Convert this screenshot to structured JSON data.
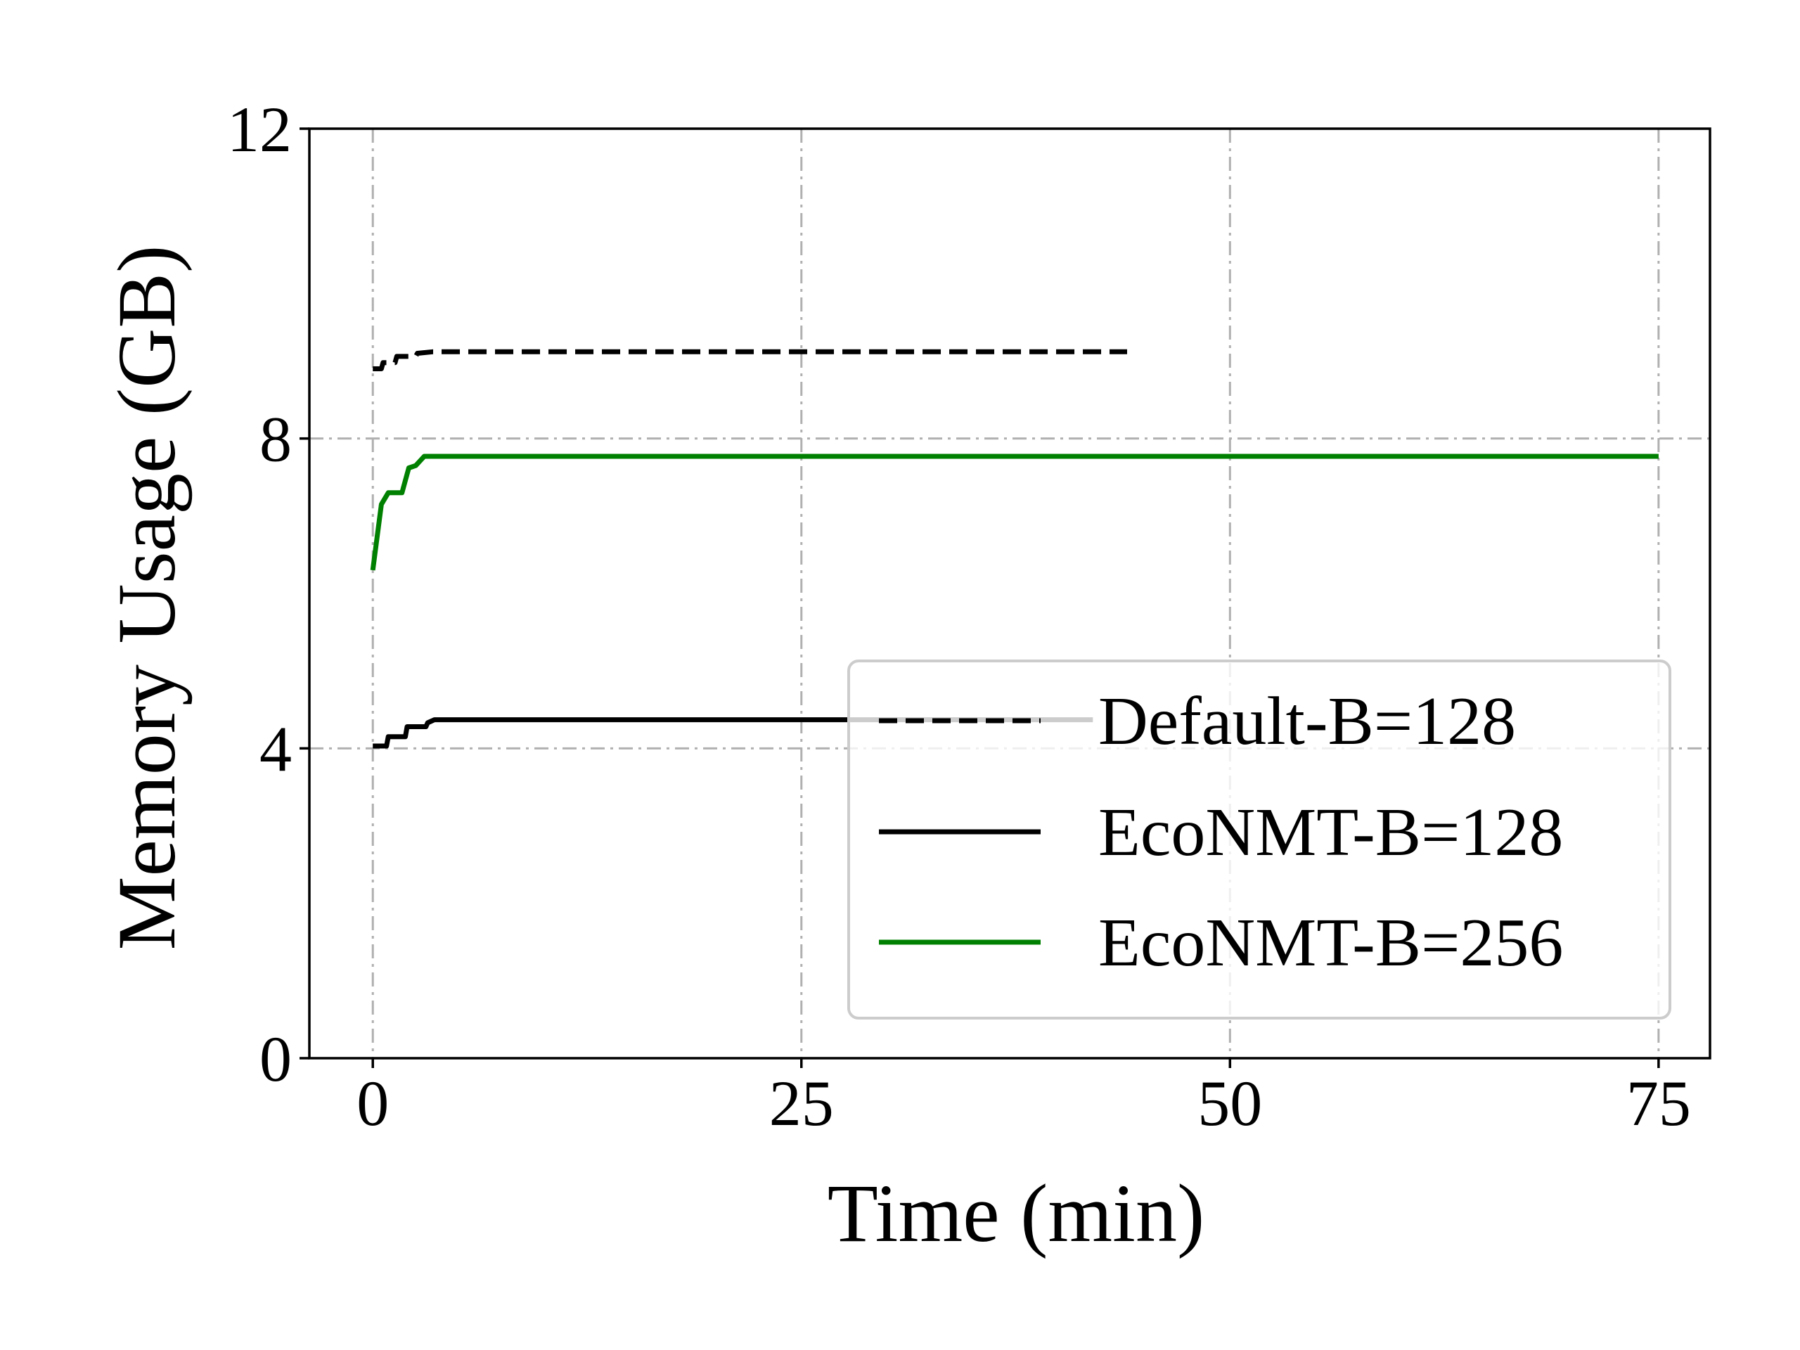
{
  "chart_data": {
    "type": "line",
    "title": "",
    "xlabel": "Time (min)",
    "ylabel": "Memory Usage (GB)",
    "xlim": [
      -3.7,
      78
    ],
    "ylim": [
      0,
      12
    ],
    "xticks": [
      0,
      25,
      50,
      75
    ],
    "yticks": [
      0,
      4,
      8,
      12
    ],
    "grid": true,
    "legend_position": "lower-right",
    "series": [
      {
        "name": "Default-B=128",
        "color": "#000000",
        "style": "dashed",
        "x": [
          0,
          0.5,
          0.6,
          1.3,
          1.4,
          2.5,
          2.6,
          3.5,
          44
        ],
        "y": [
          8.9,
          8.9,
          8.98,
          8.98,
          9.06,
          9.06,
          9.1,
          9.12,
          9.12
        ]
      },
      {
        "name": "EcoNMT-B=128",
        "color": "#000000",
        "style": "solid",
        "x": [
          0,
          0.8,
          0.9,
          1.9,
          2.0,
          3.1,
          3.2,
          3.6,
          42
        ],
        "y": [
          4.03,
          4.03,
          4.15,
          4.15,
          4.28,
          4.28,
          4.33,
          4.37,
          4.37
        ]
      },
      {
        "name": "EcoNMT-B=256",
        "color": "#008000",
        "style": "solid",
        "x": [
          0,
          0.5,
          0.9,
          1.7,
          2.1,
          2.5,
          3.0,
          75
        ],
        "y": [
          6.3,
          7.15,
          7.3,
          7.3,
          7.62,
          7.65,
          7.77,
          7.77
        ]
      }
    ]
  }
}
